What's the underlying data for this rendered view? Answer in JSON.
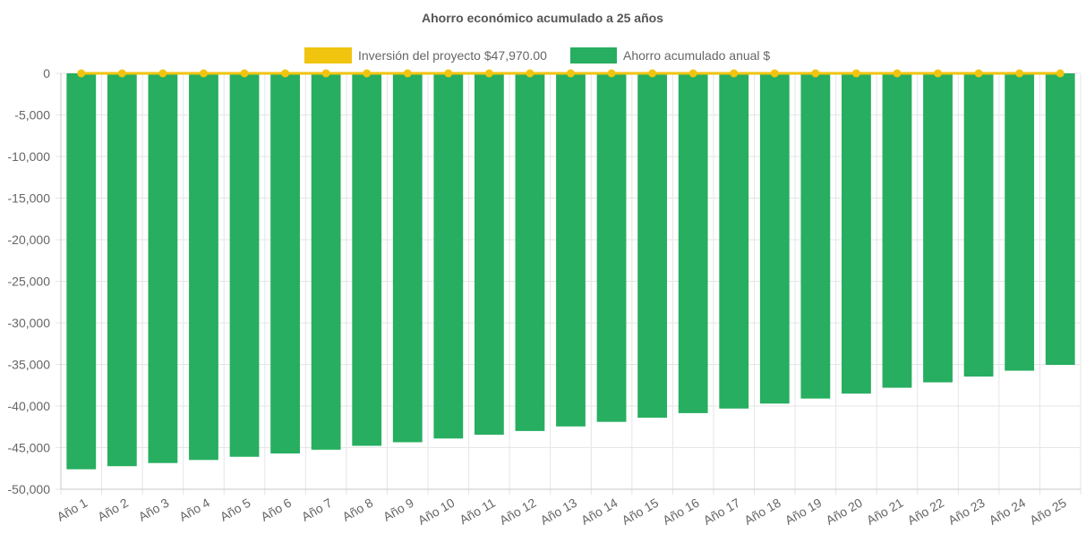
{
  "chart_data": {
    "type": "bar",
    "title": "Ahorro económico acumulado a 25 años",
    "categories": [
      "Año 1",
      "Año 2",
      "Año 3",
      "Año 4",
      "Año 5",
      "Año 6",
      "Año 7",
      "Año 8",
      "Año 9",
      "Año 10",
      "Año 11",
      "Año 12",
      "Año 13",
      "Año 14",
      "Año 15",
      "Año 16",
      "Año 17",
      "Año 18",
      "Año 19",
      "Año 20",
      "Año 21",
      "Año 22",
      "Año 23",
      "Año 24",
      "Año 25"
    ],
    "series": [
      {
        "name": "Inversión del proyecto $47,970.00",
        "type": "line",
        "color": "#F1C40F",
        "values": [
          0,
          0,
          0,
          0,
          0,
          0,
          0,
          0,
          0,
          0,
          0,
          0,
          0,
          0,
          0,
          0,
          0,
          0,
          0,
          0,
          0,
          0,
          0,
          0,
          0
        ]
      },
      {
        "name": "Ahorro acumulado anual $",
        "type": "bar",
        "color": "#27AE60",
        "values": [
          -47600,
          -47230,
          -46850,
          -46480,
          -46100,
          -45700,
          -45250,
          -44780,
          -44350,
          -43900,
          -43450,
          -43000,
          -42450,
          -41900,
          -41400,
          -40850,
          -40300,
          -39700,
          -39100,
          -38500,
          -37800,
          -37150,
          -36450,
          -35750,
          -35050
        ]
      }
    ],
    "xlabel": "",
    "ylabel": "",
    "ylim": [
      -50000,
      0
    ],
    "yticks": [
      0,
      -5000,
      -10000,
      -15000,
      -20000,
      -25000,
      -30000,
      -35000,
      -40000,
      -45000,
      -50000
    ],
    "ytick_labels": [
      "0",
      "-5,000",
      "-10,000",
      "-15,000",
      "-20,000",
      "-25,000",
      "-30,000",
      "-35,000",
      "-40,000",
      "-45,000",
      "-50,000"
    ],
    "grid": true,
    "legend_position": "top-center"
  },
  "colors": {
    "grid": "#e5e5e5",
    "axis": "#c8c8c8",
    "text": "#666666",
    "title": "#555555"
  }
}
